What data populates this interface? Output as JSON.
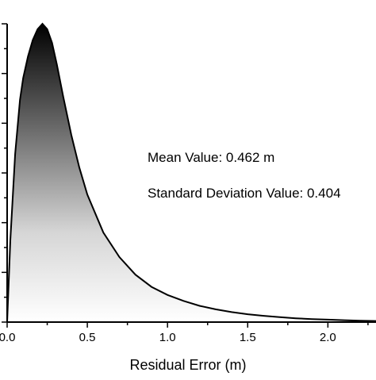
{
  "chart_data": {
    "type": "area",
    "title": "",
    "xlabel": "Residual Error (m)",
    "ylabel": "",
    "xlim": [
      0,
      2.3
    ],
    "ylim": [
      0,
      1.1
    ],
    "grid": false,
    "legend": "none",
    "x_ticks": [
      "0.0",
      "0.5",
      "1.0",
      "1.5",
      "2.0"
    ],
    "y_tick_labels_visible": false,
    "fill": "vertical gradient, black at peak to white at baseline",
    "annotations": [
      "Mean Value:  0.462 m",
      "Standard Deviation Value: 0.404"
    ],
    "series": [
      {
        "x": [
          0.0,
          0.02,
          0.05,
          0.08,
          0.1,
          0.13,
          0.16,
          0.19,
          0.22,
          0.25,
          0.28,
          0.31,
          0.35,
          0.4,
          0.45,
          0.5,
          0.6,
          0.7,
          0.8,
          0.9,
          1.0,
          1.1,
          1.2,
          1.3,
          1.4,
          1.5,
          1.6,
          1.7,
          1.8,
          1.9,
          2.0,
          2.1,
          2.2,
          2.3
        ],
        "y": [
          0.0,
          0.3,
          0.62,
          0.82,
          0.9,
          0.98,
          1.04,
          1.08,
          1.1,
          1.08,
          1.03,
          0.95,
          0.83,
          0.69,
          0.57,
          0.47,
          0.33,
          0.24,
          0.175,
          0.13,
          0.1,
          0.078,
          0.06,
          0.047,
          0.037,
          0.029,
          0.023,
          0.018,
          0.014,
          0.011,
          0.009,
          0.007,
          0.005,
          0.004
        ]
      }
    ]
  }
}
